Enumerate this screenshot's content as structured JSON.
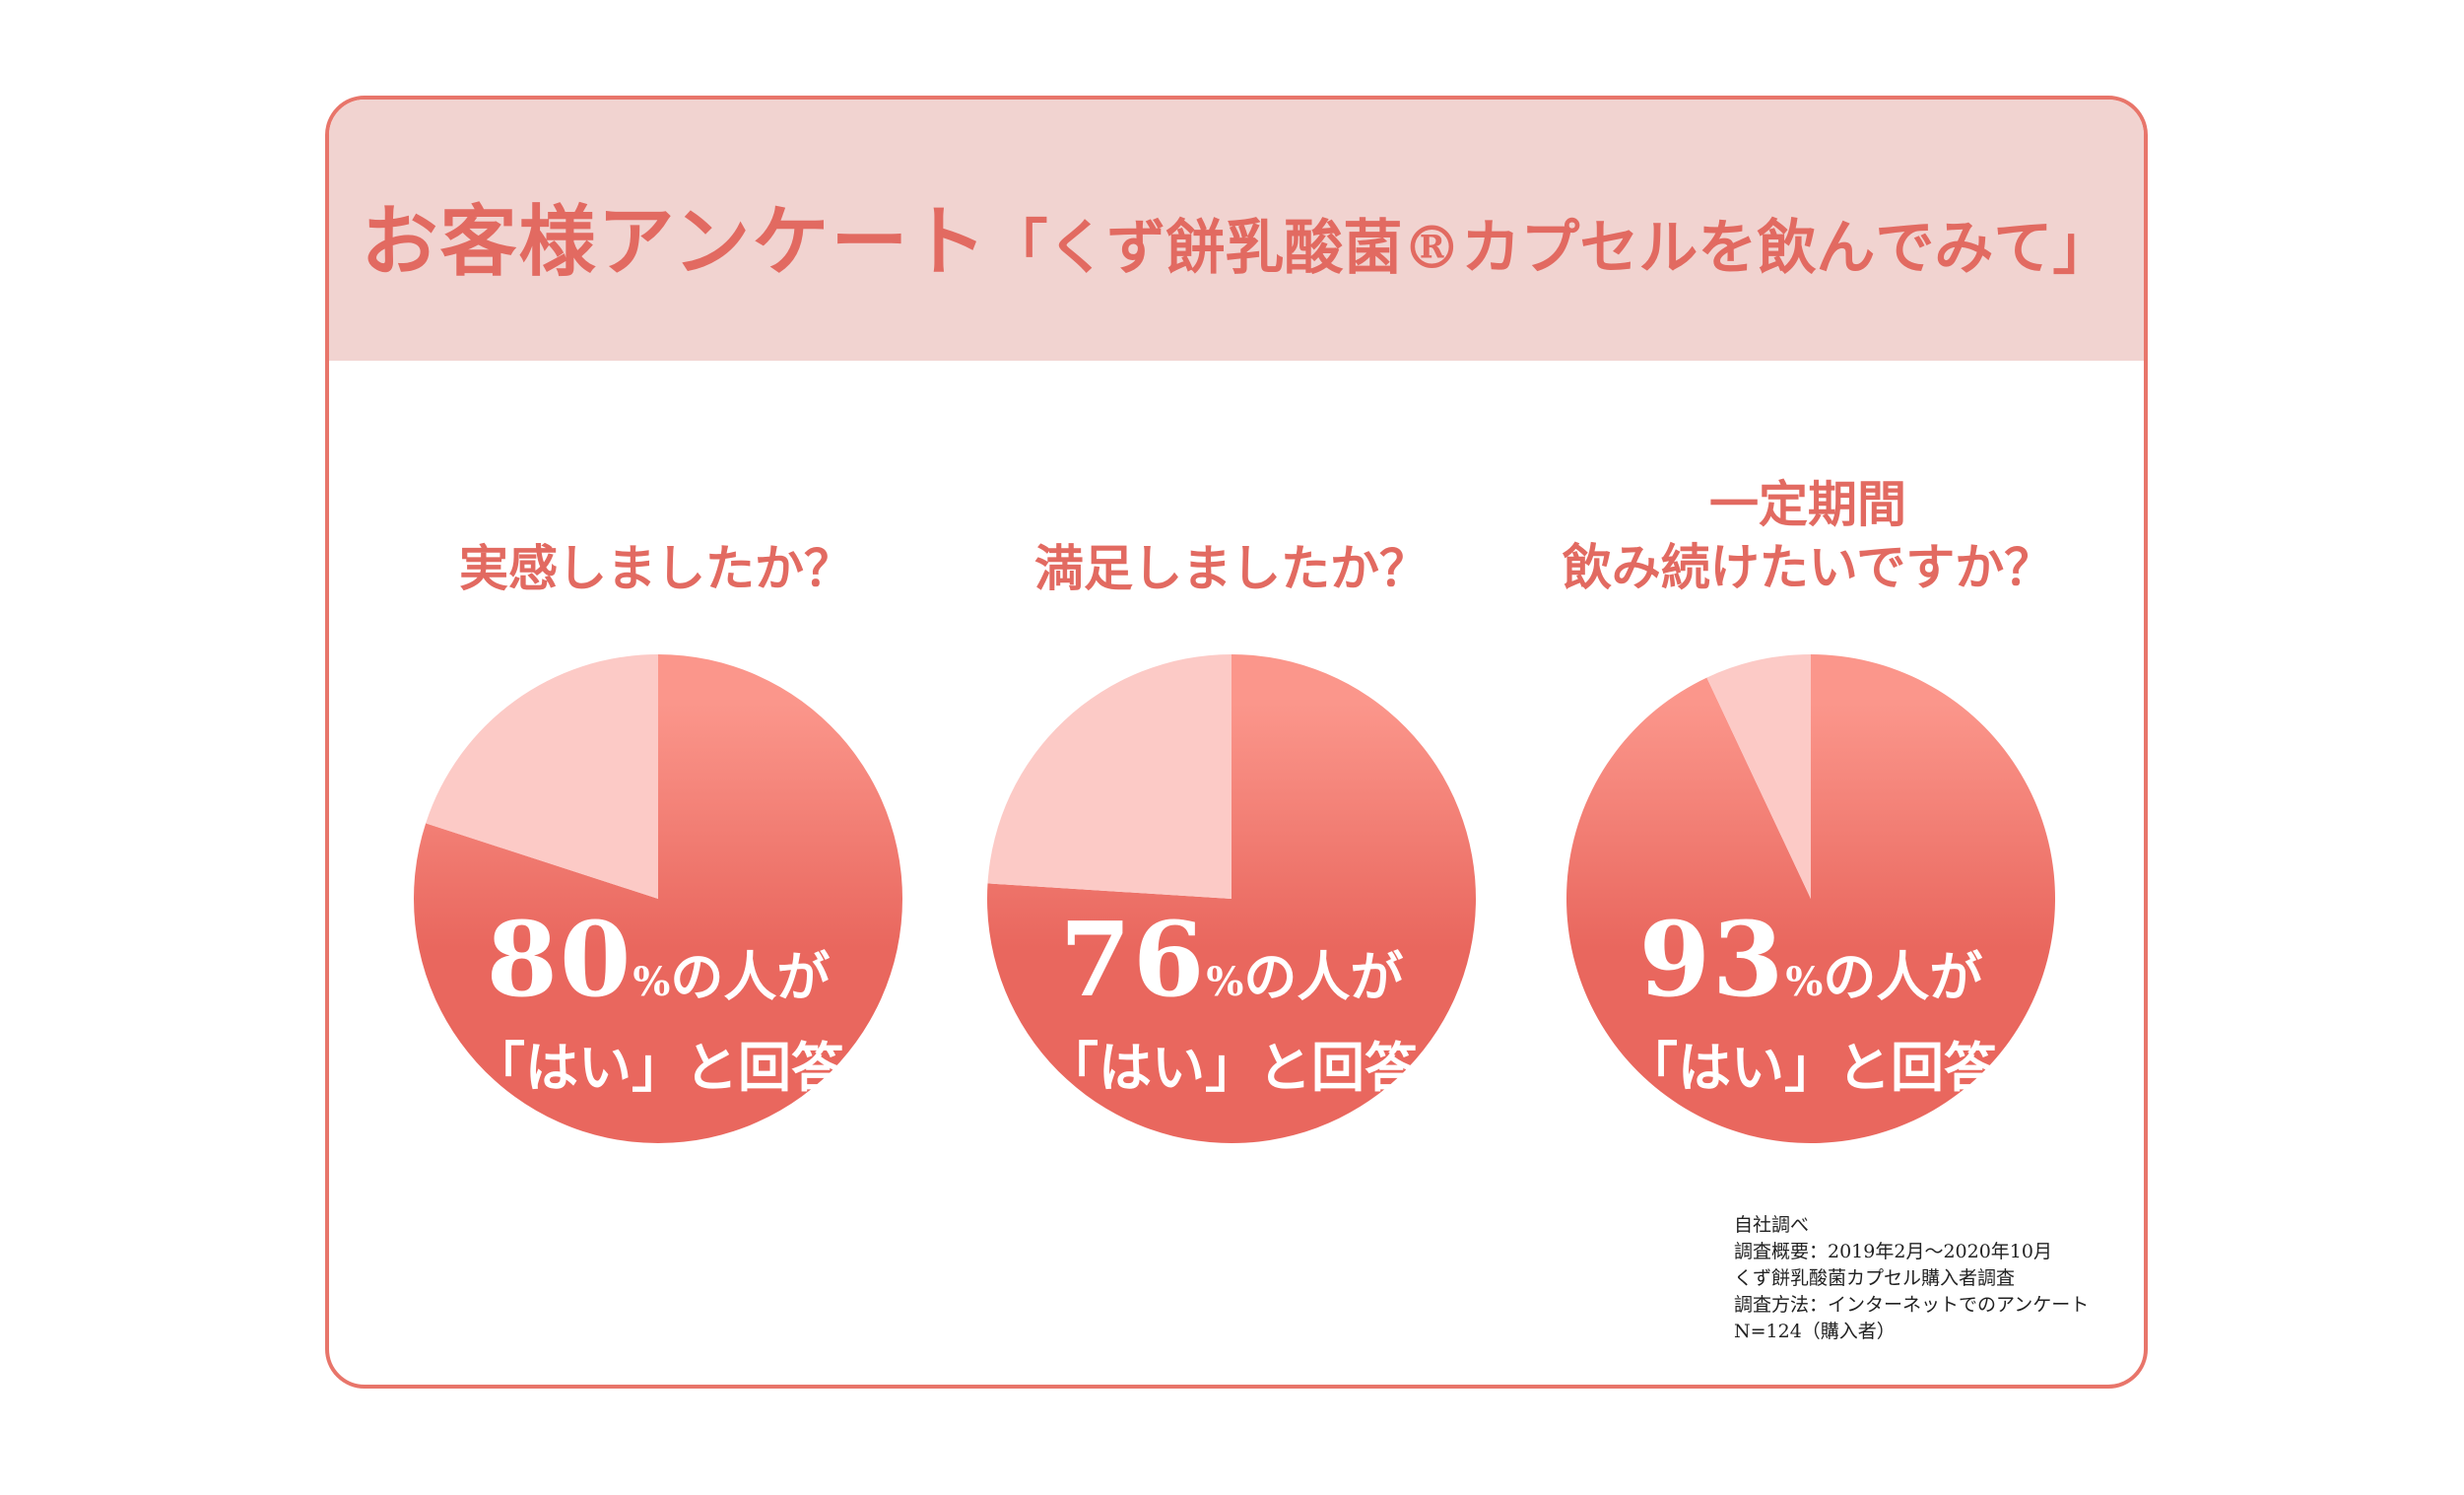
{
  "header": {
    "title_main": "お客様アンケート",
    "title_sub": "「くず餅乳酸菌®カプセルを飲んでみて」"
  },
  "colors": {
    "accent": "#e26a61",
    "yes_top": "#fb968b",
    "yes_bottom": "#e9675e",
    "no": "#fccac6",
    "header_bg": "#f1d3d0"
  },
  "chart_data": [
    {
      "type": "pie",
      "title": "実感しましたか？",
      "labels": [
        "はい",
        ""
      ],
      "values": [
        80,
        20
      ],
      "percent_label": "80",
      "percent_unit": "%",
      "caption_suffix": "の人が",
      "answer": "「はい」と回答"
    },
    {
      "type": "pie",
      "title": "満足しましたか？",
      "labels": [
        "はい",
        ""
      ],
      "values": [
        76,
        24
      ],
      "percent_label": "76",
      "percent_unit": "%",
      "caption_suffix": "の人が",
      "answer": "「はい」と回答"
    },
    {
      "type": "pie",
      "title_line1": "一定期間",
      "title": "飲み続けたいですか？",
      "labels": [
        "はい",
        ""
      ],
      "values": [
        93,
        7
      ],
      "percent_label": "93",
      "percent_unit": "%",
      "caption_suffix": "の人が",
      "answer": "「はい」と回答"
    }
  ],
  "footnote": [
    "自社調べ",
    "調査概要：2019年2月〜2020年10月",
    "くず餅乳酸菌カプセル購入者調査",
    "調査方法：インターネットでのアンケート",
    "N=124（購入者）"
  ]
}
